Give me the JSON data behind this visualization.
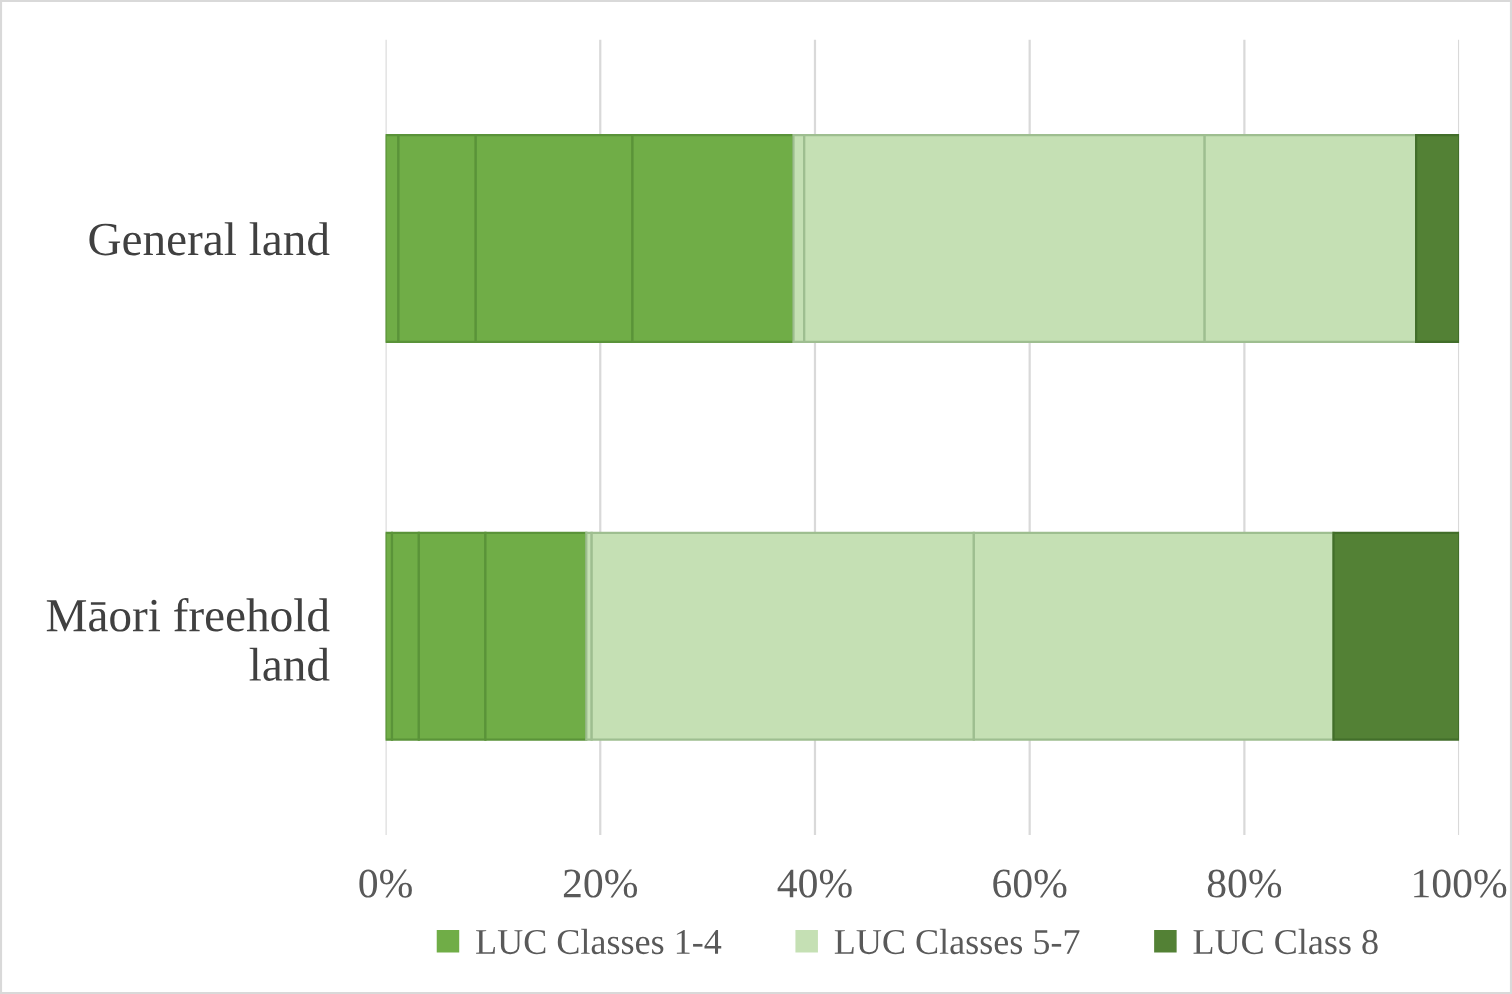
{
  "chart_data": {
    "type": "bar",
    "orientation": "horizontal",
    "stacked": true,
    "categories": [
      "General land",
      "Māori freehold land"
    ],
    "series": [
      {
        "name": "LUC Classes 1-4",
        "color": "#70ad47",
        "values": [
          1.2,
          0.6
        ]
      },
      {
        "color": "#70ad47",
        "values": [
          7.2,
          2.5
        ]
      },
      {
        "color": "#70ad47",
        "values": [
          14.6,
          6.2
        ]
      },
      {
        "color": "#70ad47",
        "values": [
          15.0,
          9.4
        ]
      },
      {
        "name": "LUC Classes 5-7",
        "color": "#c5e0b4",
        "values": [
          1.0,
          0.5
        ]
      },
      {
        "color": "#c5e0b4",
        "values": [
          37.3,
          35.6
        ]
      },
      {
        "color": "#c5e0b4",
        "values": [
          19.7,
          33.5
        ]
      },
      {
        "name": "LUC Class 8",
        "color": "#538135",
        "values": [
          4.0,
          11.7
        ]
      }
    ],
    "xlim": [
      0,
      100
    ],
    "xticks": [
      {
        "value": 0,
        "label": "0%"
      },
      {
        "value": 20,
        "label": "20%"
      },
      {
        "value": 40,
        "label": "40%"
      },
      {
        "value": 60,
        "label": "60%"
      },
      {
        "value": 80,
        "label": "80%"
      },
      {
        "value": 100,
        "label": "100%"
      }
    ],
    "grid": "x",
    "legend": "bottom"
  }
}
